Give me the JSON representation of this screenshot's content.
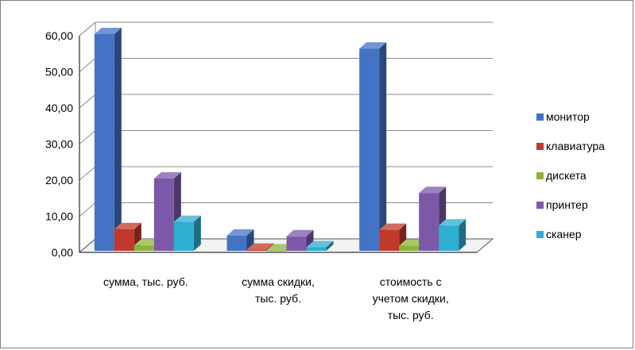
{
  "chart_data": {
    "type": "bar",
    "style": "3d-clustered-column",
    "categories": [
      [
        "сумма, тыс. руб."
      ],
      [
        "сумма скидки,",
        "тыс. руб."
      ],
      [
        "стоимость с",
        "учетом скидки,",
        "тыс. руб."
      ]
    ],
    "series": [
      {
        "name": "монитор",
        "color": "#4472c4",
        "values": [
          60.0,
          4.2,
          56.0
        ]
      },
      {
        "name": "клавиатура",
        "color": "#c0392b",
        "values": [
          6.0,
          0.3,
          5.8
        ]
      },
      {
        "name": "дискета",
        "color": "#8db33a",
        "values": [
          1.5,
          0.1,
          1.4
        ]
      },
      {
        "name": "принтер",
        "color": "#7b59a8",
        "values": [
          20.0,
          4.0,
          16.0
        ]
      },
      {
        "name": "сканер",
        "color": "#2eaed0",
        "values": [
          8.0,
          1.0,
          7.0
        ]
      }
    ],
    "y_ticks": [
      "0,00",
      "10,00",
      "20,00",
      "30,00",
      "40,00",
      "50,00",
      "60,00"
    ],
    "ylim": [
      0,
      60
    ],
    "grid": true,
    "legend_position": "right"
  }
}
